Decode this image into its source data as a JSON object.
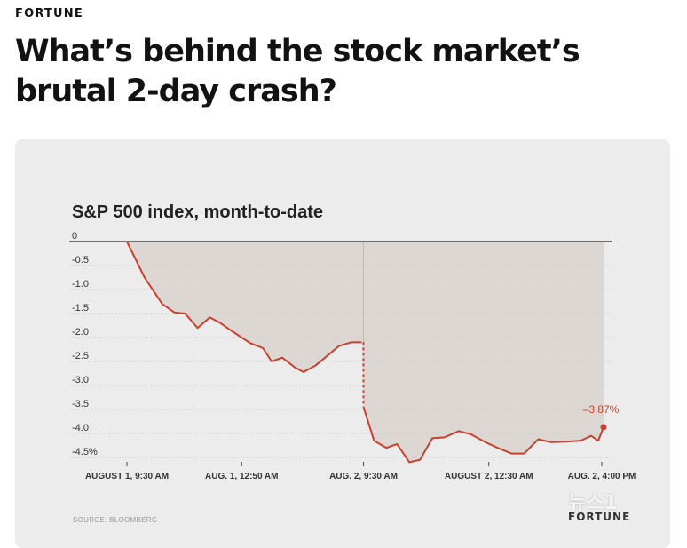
{
  "page": {
    "brand": "FORTUNE",
    "headline": "What’s behind the stock market’s brutal 2-day crash?",
    "watermark": "FORTUNE",
    "badge": "뉴스1"
  },
  "chart_data": {
    "type": "area",
    "title": "S&P 500 index, month-to-date",
    "source": "SOURCE: BLOOMBERG",
    "xlabel": "",
    "ylabel": "",
    "ylim": [
      -4.5,
      0
    ],
    "x_range": [
      0,
      27
    ],
    "gap_x": 13.4,
    "yticks": [
      {
        "v": 0,
        "label": "0"
      },
      {
        "v": -0.5,
        "label": "-0.5"
      },
      {
        "v": -1.0,
        "label": "-1.0"
      },
      {
        "v": -1.5,
        "label": "-1.5"
      },
      {
        "v": -2.0,
        "label": "-2.0"
      },
      {
        "v": -2.5,
        "label": "-2.5"
      },
      {
        "v": -3.0,
        "label": "-3.0"
      },
      {
        "v": -3.5,
        "label": "-3.5"
      },
      {
        "v": -4.0,
        "label": "-4.0"
      },
      {
        "v": -4.5,
        "label": "-4.5%"
      }
    ],
    "xticks": [
      {
        "x": 0,
        "label": "AUGUST 1, 9:30 AM"
      },
      {
        "x": 6.5,
        "label": "AUG. 1, 12:50 AM"
      },
      {
        "x": 13.4,
        "label": "AUG. 2, 9:30 AM"
      },
      {
        "x": 20.5,
        "label": "AUGUST 2, 12:30 AM"
      },
      {
        "x": 26.9,
        "label": "AUG. 2, 4:00 PM"
      }
    ],
    "series": [
      {
        "name": "Aug 1",
        "points": [
          [
            0,
            0
          ],
          [
            1,
            -0.75
          ],
          [
            2,
            -1.3
          ],
          [
            2.7,
            -1.48
          ],
          [
            3.3,
            -1.5
          ],
          [
            4,
            -1.8
          ],
          [
            4.7,
            -1.58
          ],
          [
            5.3,
            -1.7
          ],
          [
            6,
            -1.88
          ],
          [
            7,
            -2.12
          ],
          [
            7.7,
            -2.22
          ],
          [
            8.2,
            -2.5
          ],
          [
            8.8,
            -2.42
          ],
          [
            9.5,
            -2.62
          ],
          [
            10,
            -2.72
          ],
          [
            10.7,
            -2.58
          ],
          [
            12,
            -2.18
          ],
          [
            12.7,
            -2.1
          ],
          [
            13.3,
            -2.1
          ]
        ]
      },
      {
        "name": "Aug 2",
        "points": [
          [
            13.4,
            -3.45
          ],
          [
            14,
            -4.15
          ],
          [
            14.7,
            -4.3
          ],
          [
            15.3,
            -4.22
          ],
          [
            16,
            -4.6
          ],
          [
            16.6,
            -4.55
          ],
          [
            17.3,
            -4.1
          ],
          [
            18,
            -4.08
          ],
          [
            18.8,
            -3.95
          ],
          [
            19.5,
            -4.02
          ],
          [
            20.3,
            -4.18
          ],
          [
            21,
            -4.3
          ],
          [
            21.8,
            -4.42
          ],
          [
            22.5,
            -4.42
          ],
          [
            23.3,
            -4.12
          ],
          [
            24,
            -4.18
          ],
          [
            25,
            -4.17
          ],
          [
            25.7,
            -4.15
          ],
          [
            26.3,
            -4.05
          ],
          [
            26.7,
            -4.15
          ],
          [
            27,
            -3.87
          ]
        ]
      }
    ],
    "gap": {
      "from": -2.1,
      "to": -3.45
    },
    "annotation": {
      "x": 27,
      "y": -3.87,
      "label": "–3.87%"
    },
    "colors": {
      "line": "#c8412e",
      "area": "#ddd7d4",
      "grid": "#c9c9c9",
      "axis": "#222222"
    }
  }
}
